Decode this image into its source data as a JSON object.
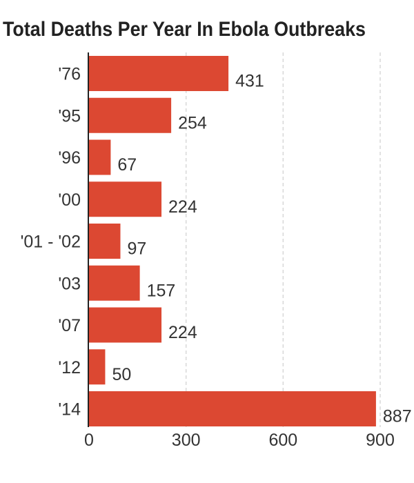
{
  "chart_data": {
    "type": "bar",
    "orientation": "horizontal",
    "title": "Total Deaths Per Year In Ebola Outbreaks",
    "categories": [
      "'76",
      "'95",
      "'96",
      "'00",
      "'01 - '02",
      "'03",
      "'07",
      "'12",
      "'14"
    ],
    "values": [
      431,
      254,
      67,
      224,
      97,
      157,
      224,
      50,
      887
    ],
    "xlabel": "",
    "ylabel": "",
    "xlim": [
      0,
      900
    ],
    "xticks": [
      "0",
      "300",
      "600",
      "900"
    ],
    "grid": true,
    "bar_color": "#dc4832",
    "text_color": "#333333"
  }
}
